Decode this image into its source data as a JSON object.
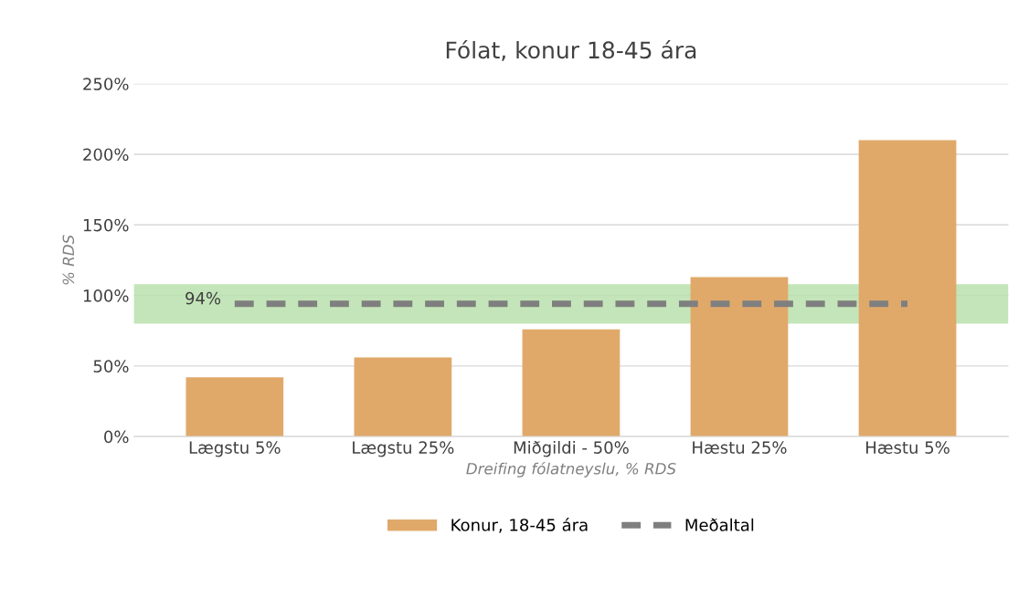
{
  "chart_data": {
    "type": "bar",
    "title": "Fólat, konur 18-45 ára",
    "xlabel": "Dreifing fólatneyslu, % RDS",
    "ylabel": "% RDS",
    "categories": [
      "Lægstu 5%",
      "Lægstu 25%",
      "Miðgildi - 50%",
      "Hæstu 25%",
      "Hæstu 5%"
    ],
    "series": [
      {
        "name": "Konur, 18-45 ára",
        "color": "#e0a96a",
        "values": [
          42,
          56,
          76,
          113,
          210
        ]
      },
      {
        "name": "Meðaltal",
        "type": "line",
        "color": "#7f7f7f",
        "line_style": "dashed",
        "values": [
          94,
          94,
          94,
          94,
          94
        ],
        "value_labels": [
          "94%",
          null,
          null,
          null,
          null
        ]
      }
    ],
    "ylim": [
      0,
      250
    ],
    "yticks": [
      {
        "value": 0,
        "label": "0%"
      },
      {
        "value": 50,
        "label": "50%"
      },
      {
        "value": 100,
        "label": "100%"
      },
      {
        "value": 150,
        "label": "150%"
      },
      {
        "value": 200,
        "label": "200%"
      },
      {
        "value": 250,
        "label": "250%"
      }
    ],
    "bands": [
      {
        "axis": "y",
        "from": 80,
        "to": 108,
        "color": "#b5dfa8"
      }
    ],
    "grid": "y",
    "legend": "bottom"
  }
}
